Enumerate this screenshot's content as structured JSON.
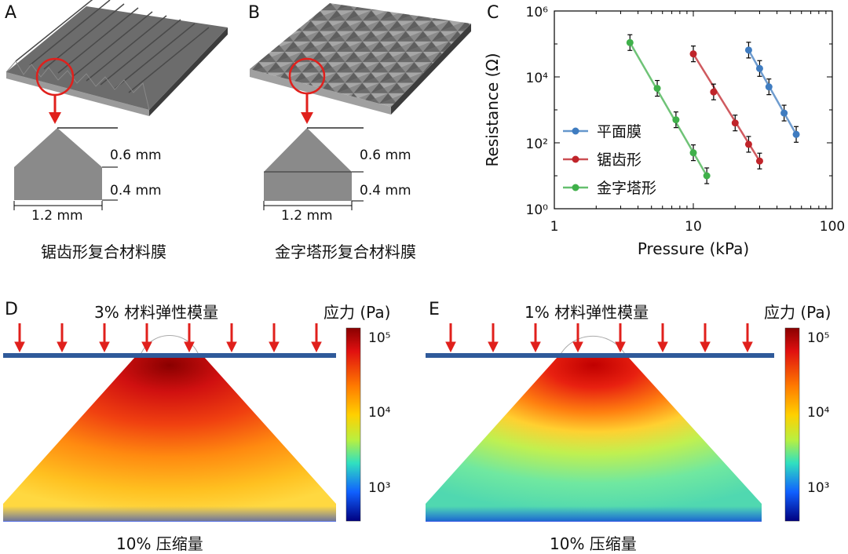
{
  "panels": {
    "A": {
      "letter": "A",
      "dim_top": "0.6 mm",
      "dim_bottom": "0.4 mm",
      "dim_width": "1.2 mm",
      "caption": "锯齿形复合材料膜"
    },
    "B": {
      "letter": "B",
      "dim_top": "0.6 mm",
      "dim_bottom": "0.4 mm",
      "dim_width": "1.2 mm",
      "caption": "金字塔形复合材料膜"
    },
    "C": {
      "letter": "C"
    },
    "D": {
      "letter": "D",
      "title": "3% 材料弹性模量",
      "bottom_label": "10% 压缩量",
      "colorbar_title": "应力 (Pa)"
    },
    "E": {
      "letter": "E",
      "title": "1% 材料弹性模量",
      "bottom_label": "10% 压缩量",
      "colorbar_title": "应力 (Pa)"
    }
  },
  "colorbar_ticks": [
    "10⁵",
    "10⁴",
    "10³"
  ],
  "colors": {
    "blue_series": "#3f7cc0",
    "red_series": "#c0242a",
    "green_series": "#3fb04a",
    "arrow_red": "#e0201c",
    "plate_blue": "#2f5a9a"
  },
  "chart_data": {
    "type": "scatter",
    "xlabel": "Pressure (kPa)",
    "ylabel": "Resistance (Ω)",
    "xscale": "log",
    "yscale": "log",
    "xlim": [
      1,
      100
    ],
    "ylim": [
      1,
      1000000
    ],
    "x_tick_labels": [
      "1",
      "10",
      "100"
    ],
    "y_tick_labels": [
      "10⁰",
      "10²",
      "10⁴",
      "10⁶"
    ],
    "legend_position": "left",
    "series": [
      {
        "name": "平面膜",
        "color": "#3f7cc0",
        "x": [
          25,
          30,
          35,
          45,
          55
        ],
        "y": [
          65000,
          18000,
          5000,
          800,
          180
        ]
      },
      {
        "name": "锯齿形",
        "color": "#c0242a",
        "x": [
          10,
          14,
          20,
          25,
          30
        ],
        "y": [
          50000,
          3500,
          400,
          90,
          28
        ]
      },
      {
        "name": "金字塔形",
        "color": "#3fb04a",
        "x": [
          3.5,
          5.5,
          7.5,
          10,
          12.5
        ],
        "y": [
          110000,
          4500,
          500,
          50,
          10
        ]
      }
    ]
  }
}
